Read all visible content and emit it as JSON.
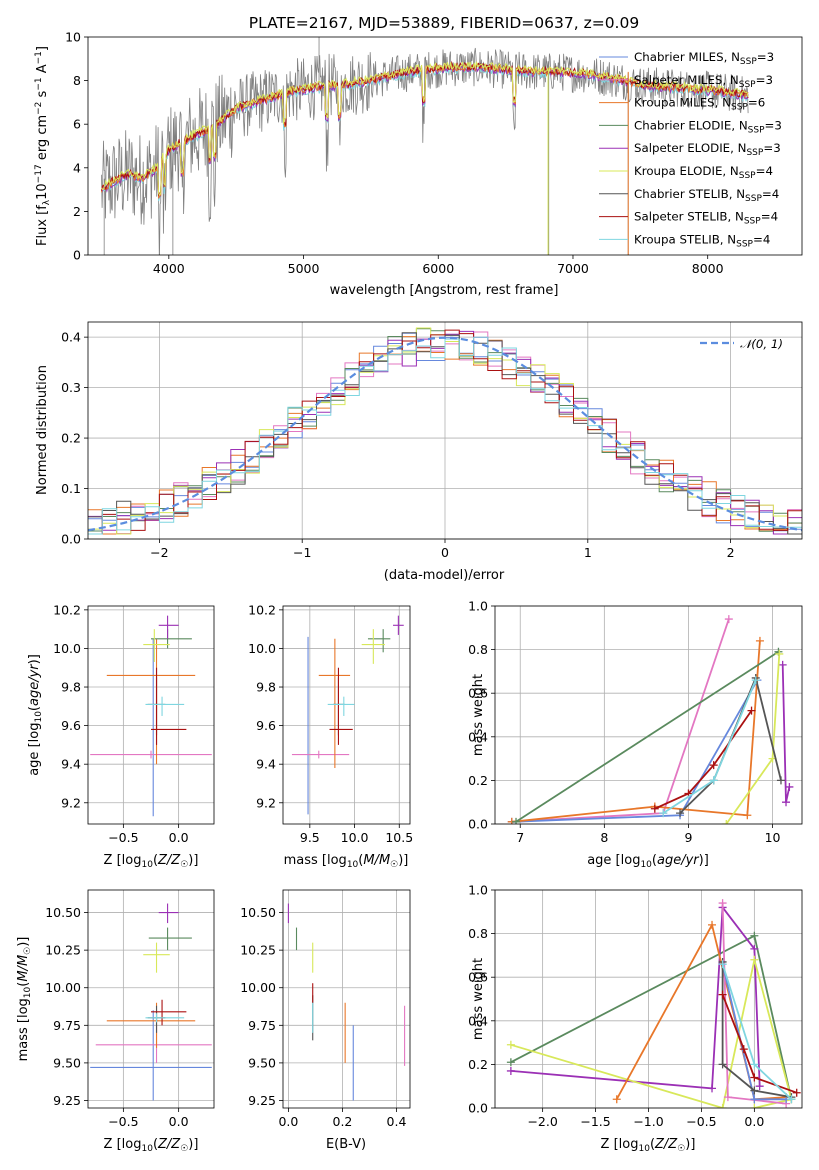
{
  "title": "PLATE=2167, MJD=53889, FIBERID=0637, z=0.09",
  "colors": {
    "chabrier_miles": "#6688dd",
    "salpeter_miles": "#e377c2",
    "kroupa_miles": "#e8772a",
    "chabrier_elodie": "#5a8a5e",
    "salpeter_elodie": "#9b30b5",
    "kroupa_elodie": "#d8e85a",
    "chabrier_stelib": "#555555",
    "salpeter_stelib": "#aa1111",
    "kroupa_stelib": "#7fd6e0",
    "data": "#808080"
  },
  "chart_data": [
    {
      "id": "spectrum",
      "type": "line",
      "xlabel": "wavelength [Angstrom, rest frame]",
      "ylabel": "Flux [f",
      "xlim": [
        3400,
        8700
      ],
      "ylim": [
        0,
        10
      ],
      "xticks": [
        "4000",
        "5000",
        "6000",
        "7000",
        "8000"
      ],
      "yticks": [
        "0",
        "2",
        "4",
        "6",
        "8",
        "10"
      ],
      "legend_position": "right",
      "legend": [
        {
          "name": "Chabrier MILES, N",
          "n": "3"
        },
        {
          "name": "Salpeter MILES, N",
          "n": "3"
        },
        {
          "name": "Kroupa MILES, N",
          "n": "6"
        },
        {
          "name": "Chabrier ELODIE, N",
          "n": "3"
        },
        {
          "name": "Salpeter ELODIE, N",
          "n": "3"
        },
        {
          "name": "Kroupa ELODIE, N",
          "n": "4"
        },
        {
          "name": "Chabrier STELIB, N",
          "n": "4"
        },
        {
          "name": "Salpeter STELIB, N",
          "n": "4"
        },
        {
          "name": "Kroupa STELIB, N",
          "n": "4"
        }
      ],
      "continuum": {
        "x": [
          3500,
          3600,
          3700,
          3800,
          3900,
          4000,
          4100,
          4200,
          4300,
          4400,
          4500,
          4700,
          4900,
          5100,
          5300,
          5500,
          5700,
          5900,
          6100,
          6300,
          6500,
          6700,
          6900,
          7100,
          7300,
          7500,
          7700,
          7900,
          8100,
          8300
        ],
        "y": [
          3.0,
          3.4,
          3.7,
          3.5,
          3.9,
          4.8,
          5.2,
          5.5,
          5.8,
          6.2,
          6.7,
          7.1,
          7.5,
          7.7,
          7.8,
          8.0,
          8.3,
          8.5,
          8.6,
          8.6,
          8.5,
          8.4,
          8.4,
          8.3,
          8.1,
          7.8,
          7.7,
          7.6,
          7.5,
          7.3
        ]
      }
    },
    {
      "id": "residuals",
      "type": "step",
      "xlabel": "(data-model)/error",
      "ylabel": "Normed distribution",
      "xlim": [
        -2.5,
        2.5
      ],
      "ylim": [
        0,
        0.43
      ],
      "xticks": [
        "−2",
        "−1",
        "0",
        "1",
        "2"
      ],
      "yticks": [
        "0.0",
        "0.1",
        "0.2",
        "0.3",
        "0.4"
      ],
      "reference_label": "𝒩(0, 1)",
      "reference": {
        "mean": 0,
        "sigma": 1
      }
    },
    {
      "id": "z-age",
      "type": "scatter",
      "xlabel": "Z [log",
      "ylabel": "age  [log",
      "xlim": [
        -0.82,
        0.32
      ],
      "ylim": [
        9.09,
        10.22
      ],
      "xticks": [
        "−0.5",
        "0.0"
      ],
      "yticks": [
        "9.2",
        "9.4",
        "9.6",
        "9.8",
        "10.0",
        "10.2"
      ],
      "points": [
        {
          "c": "chabrier_miles",
          "x": -0.23,
          "y": 9.45,
          "xe": [
            -0.23,
            -0.23
          ],
          "ye": [
            9.13,
            10.05
          ]
        },
        {
          "c": "salpeter_miles",
          "x": -0.25,
          "y": 9.45,
          "xe": [
            -0.8,
            0.3
          ],
          "ye": [
            9.43,
            9.47
          ]
        },
        {
          "c": "kroupa_miles",
          "x": -0.2,
          "y": 9.86,
          "xe": [
            -0.65,
            0.15
          ],
          "ye": [
            9.4,
            10.05
          ]
        },
        {
          "c": "chabrier_elodie",
          "x": -0.1,
          "y": 10.05,
          "xe": [
            -0.25,
            0.12
          ],
          "ye": [
            10.0,
            10.1
          ]
        },
        {
          "c": "salpeter_elodie",
          "x": -0.1,
          "y": 10.12,
          "xe": [
            -0.18,
            0.0
          ],
          "ye": [
            10.05,
            10.17
          ]
        },
        {
          "c": "kroupa_elodie",
          "x": -0.22,
          "y": 10.02,
          "xe": [
            -0.32,
            -0.08
          ],
          "ye": [
            9.93,
            10.1
          ]
        },
        {
          "c": "chabrier_stelib",
          "x": -0.2,
          "y": 9.71,
          "xe": [
            -0.28,
            -0.12
          ],
          "ye": [
            9.55,
            9.85
          ]
        },
        {
          "c": "salpeter_stelib",
          "x": -0.2,
          "y": 9.58,
          "xe": [
            -0.25,
            0.07
          ],
          "ye": [
            9.5,
            9.9
          ]
        },
        {
          "c": "kroupa_stelib",
          "x": -0.15,
          "y": 9.71,
          "xe": [
            -0.3,
            0.05
          ],
          "ye": [
            9.65,
            9.75
          ]
        }
      ]
    },
    {
      "id": "mass-age",
      "type": "scatter",
      "xlabel": "mass [log",
      "xlim": [
        9.2,
        10.62
      ],
      "ylim": [
        9.09,
        10.22
      ],
      "xticks": [
        "9.5",
        "10.0",
        "10.5"
      ],
      "yticks": [
        "9.2",
        "9.4",
        "9.6",
        "9.8",
        "10.0",
        "10.2"
      ],
      "points": [
        {
          "c": "chabrier_miles",
          "x": 9.48,
          "y": 9.45,
          "xe": [
            9.48,
            9.48
          ],
          "ye": [
            9.14,
            10.06
          ]
        },
        {
          "c": "salpeter_miles",
          "x": 9.6,
          "y": 9.45,
          "xe": [
            9.3,
            9.94
          ],
          "ye": [
            9.43,
            9.47
          ]
        },
        {
          "c": "kroupa_miles",
          "x": 9.78,
          "y": 9.86,
          "xe": [
            9.6,
            9.95
          ],
          "ye": [
            9.38,
            10.05
          ]
        },
        {
          "c": "chabrier_elodie",
          "x": 10.32,
          "y": 10.05,
          "xe": [
            10.15,
            10.4
          ],
          "ye": [
            9.98,
            10.1
          ]
        },
        {
          "c": "salpeter_elodie",
          "x": 10.49,
          "y": 10.12,
          "xe": [
            10.43,
            10.55
          ],
          "ye": [
            10.07,
            10.17
          ]
        },
        {
          "c": "kroupa_elodie",
          "x": 10.21,
          "y": 10.02,
          "xe": [
            10.08,
            10.34
          ],
          "ye": [
            9.92,
            10.1
          ]
        },
        {
          "c": "chabrier_stelib",
          "x": 9.82,
          "y": 9.71,
          "xe": [
            9.76,
            9.89
          ],
          "ye": [
            9.55,
            9.85
          ]
        },
        {
          "c": "salpeter_stelib",
          "x": 9.82,
          "y": 9.58,
          "xe": [
            9.72,
            9.98
          ],
          "ye": [
            9.5,
            9.9
          ]
        },
        {
          "c": "kroupa_stelib",
          "x": 9.88,
          "y": 9.71,
          "xe": [
            9.7,
            10.0
          ],
          "ye": [
            9.65,
            9.75
          ]
        }
      ]
    },
    {
      "id": "age-weight",
      "type": "line",
      "xlabel": "age  [log",
      "ylabel": "mass weight",
      "xlim": [
        6.7,
        10.35
      ],
      "ylim": [
        0,
        1.0
      ],
      "xticks": [
        "7",
        "8",
        "9",
        "10"
      ],
      "yticks": [
        "0.0",
        "0.2",
        "0.4",
        "0.6",
        "0.8",
        "1.0"
      ],
      "series": [
        {
          "c": "salpeter_miles",
          "x": [
            6.9,
            8.7,
            9.48
          ],
          "y": [
            0.01,
            0.05,
            0.94
          ]
        },
        {
          "c": "chabrier_miles",
          "x": [
            6.9,
            8.9,
            9.82
          ],
          "y": [
            0.01,
            0.04,
            0.66
          ]
        },
        {
          "c": "kroupa_miles",
          "x": [
            6.9,
            8.6,
            9.7,
            9.85
          ],
          "y": [
            0.01,
            0.08,
            0.04,
            0.84
          ]
        },
        {
          "c": "chabrier_elodie",
          "x": [
            6.95,
            10.07
          ],
          "y": [
            0.01,
            0.79
          ]
        },
        {
          "c": "salpeter_elodie",
          "x": [
            10.12,
            10.16,
            10.2
          ],
          "y": [
            0.73,
            0.1,
            0.17
          ]
        },
        {
          "c": "kroupa_elodie",
          "x": [
            9.45,
            10.0,
            10.08
          ],
          "y": [
            0.0,
            0.3,
            0.78
          ]
        },
        {
          "c": "chabrier_stelib",
          "x": [
            8.9,
            9.3,
            9.8,
            10.1
          ],
          "y": [
            0.05,
            0.2,
            0.67,
            0.2
          ]
        },
        {
          "c": "salpeter_stelib",
          "x": [
            8.6,
            9.0,
            9.3,
            9.75
          ],
          "y": [
            0.07,
            0.14,
            0.27,
            0.52
          ]
        },
        {
          "c": "kroupa_stelib",
          "x": [
            8.7,
            9.3,
            9.8
          ],
          "y": [
            0.05,
            0.2,
            0.66
          ]
        }
      ]
    },
    {
      "id": "z-mass",
      "type": "scatter",
      "xlabel": "Z [log",
      "ylabel": "mass [log",
      "xlim": [
        -0.82,
        0.32
      ],
      "ylim": [
        9.2,
        10.65
      ],
      "xticks": [
        "−0.5",
        "0.0"
      ],
      "yticks": [
        "9.25",
        "9.50",
        "9.75",
        "10.00",
        "10.25",
        "10.50"
      ],
      "points": [
        {
          "c": "chabrier_miles",
          "x": -0.23,
          "y": 9.47,
          "xe": [
            -0.8,
            0.3
          ],
          "ye": [
            9.25,
            9.85
          ]
        },
        {
          "c": "salpeter_miles",
          "x": -0.2,
          "y": 9.62,
          "xe": [
            -0.75,
            0.3
          ],
          "ye": [
            9.5,
            9.75
          ]
        },
        {
          "c": "kroupa_miles",
          "x": -0.2,
          "y": 9.78,
          "xe": [
            -0.65,
            0.15
          ],
          "ye": [
            9.6,
            9.9
          ]
        },
        {
          "c": "chabrier_elodie",
          "x": -0.1,
          "y": 10.33,
          "xe": [
            -0.27,
            0.12
          ],
          "ye": [
            10.25,
            10.4
          ]
        },
        {
          "c": "salpeter_elodie",
          "x": -0.1,
          "y": 10.5,
          "xe": [
            -0.18,
            0.0
          ],
          "ye": [
            10.43,
            10.56
          ]
        },
        {
          "c": "kroupa_elodie",
          "x": -0.2,
          "y": 10.22,
          "xe": [
            -0.32,
            -0.08
          ],
          "ye": [
            10.1,
            10.3
          ]
        },
        {
          "c": "chabrier_stelib",
          "x": -0.2,
          "y": 9.8,
          "xe": [
            -0.28,
            -0.12
          ],
          "ye": [
            9.7,
            9.88
          ]
        },
        {
          "c": "salpeter_stelib",
          "x": -0.15,
          "y": 9.84,
          "xe": [
            -0.25,
            0.07
          ],
          "ye": [
            9.75,
            9.92
          ]
        },
        {
          "c": "kroupa_stelib",
          "x": -0.2,
          "y": 9.8,
          "xe": [
            -0.3,
            0.05
          ],
          "ye": [
            9.77,
            9.83
          ]
        }
      ]
    },
    {
      "id": "ebv-mass",
      "type": "scatter",
      "xlabel": "E(B-V)",
      "xlim": [
        -0.02,
        0.45
      ],
      "ylim": [
        9.2,
        10.65
      ],
      "xticks": [
        "0.0",
        "0.2",
        "0.4"
      ],
      "yticks": [
        "9.25",
        "9.50",
        "9.75",
        "10.00",
        "10.25",
        "10.50"
      ],
      "points": [
        {
          "c": "chabrier_miles",
          "x": 0.24,
          "y": 9.47,
          "xe": [
            0.24,
            0.24
          ],
          "ye": [
            9.25,
            9.75
          ]
        },
        {
          "c": "salpeter_miles",
          "x": 0.43,
          "y": 9.62,
          "xe": [
            0.43,
            0.43
          ],
          "ye": [
            9.48,
            9.88
          ]
        },
        {
          "c": "kroupa_miles",
          "x": 0.21,
          "y": 9.78,
          "xe": [
            0.21,
            0.21
          ],
          "ye": [
            9.5,
            9.9
          ]
        },
        {
          "c": "chabrier_elodie",
          "x": 0.03,
          "y": 10.33,
          "xe": [
            0.03,
            0.03
          ],
          "ye": [
            10.25,
            10.4
          ]
        },
        {
          "c": "salpeter_elodie",
          "x": 0.0,
          "y": 10.5,
          "xe": [
            0.0,
            0.0
          ],
          "ye": [
            10.43,
            10.56
          ]
        },
        {
          "c": "kroupa_elodie",
          "x": 0.09,
          "y": 10.22,
          "xe": [
            0.09,
            0.09
          ],
          "ye": [
            10.1,
            10.3
          ]
        },
        {
          "c": "chabrier_stelib",
          "x": 0.09,
          "y": 9.8,
          "xe": [
            0.09,
            0.09
          ],
          "ye": [
            9.65,
            9.95
          ]
        },
        {
          "c": "salpeter_stelib",
          "x": 0.09,
          "y": 9.95,
          "xe": [
            0.09,
            0.09
          ],
          "ye": [
            9.9,
            10.03
          ]
        },
        {
          "c": "kroupa_stelib",
          "x": 0.09,
          "y": 9.8,
          "xe": [
            0.09,
            0.09
          ],
          "ye": [
            9.7,
            9.9
          ]
        }
      ]
    },
    {
      "id": "zmet-weight",
      "type": "line",
      "xlabel": "Z [log",
      "ylabel": "mass weight",
      "xlim": [
        -2.45,
        0.45
      ],
      "ylim": [
        0,
        1.0
      ],
      "xticks": [
        "−2.0",
        "−1.5",
        "−1.0",
        "−0.5",
        "0.0"
      ],
      "yticks": [
        "0.0",
        "0.2",
        "0.4",
        "0.6",
        "0.8",
        "1.0"
      ],
      "series": [
        {
          "c": "chabrier_elodie",
          "x": [
            -2.3,
            0.0,
            0.35
          ],
          "y": [
            0.21,
            0.79,
            0.04
          ]
        },
        {
          "c": "salpeter_elodie",
          "x": [
            -2.3,
            -0.4,
            -0.3,
            0.0,
            0.05
          ],
          "y": [
            0.17,
            0.09,
            0.92,
            0.73,
            0.1
          ]
        },
        {
          "c": "kroupa_elodie",
          "x": [
            -2.3,
            -0.3,
            0.0,
            0.35,
            0.0
          ],
          "y": [
            0.29,
            0.0,
            0.68,
            0.04,
            0.0
          ]
        },
        {
          "c": "kroupa_miles",
          "x": [
            -1.3,
            -0.4,
            0.0,
            0.3
          ],
          "y": [
            0.04,
            0.84,
            0.04,
            0.05
          ]
        },
        {
          "c": "salpeter_miles",
          "x": [
            -0.3,
            -0.25,
            0.3
          ],
          "y": [
            0.94,
            0.05,
            0.02
          ]
        },
        {
          "c": "chabrier_miles",
          "x": [
            -0.3,
            0.0,
            0.3
          ],
          "y": [
            0.66,
            0.04,
            0.04
          ]
        },
        {
          "c": "chabrier_stelib",
          "x": [
            -0.3,
            -0.3,
            0.0,
            0.35
          ],
          "y": [
            0.67,
            0.2,
            0.08,
            0.05
          ]
        },
        {
          "c": "salpeter_stelib",
          "x": [
            -0.3,
            -0.1,
            0.0,
            0.4
          ],
          "y": [
            0.52,
            0.27,
            0.14,
            0.07
          ]
        },
        {
          "c": "kroupa_stelib",
          "x": [
            -0.3,
            0.0,
            0.35
          ],
          "y": [
            0.66,
            0.2,
            0.04
          ]
        }
      ]
    }
  ]
}
